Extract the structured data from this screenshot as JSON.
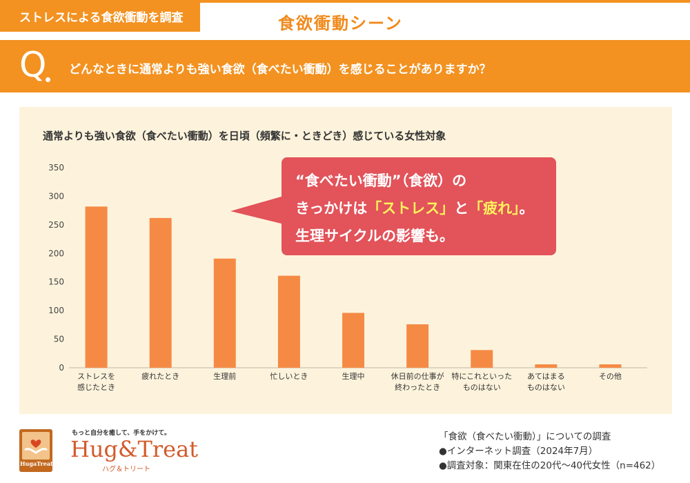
{
  "header": {
    "tag": "ストレスによる食欲衝動を調査",
    "section_title": "食欲衝動シーン"
  },
  "question": {
    "mark": "Q",
    "text": "どんなときに通常よりも強い食欲（食べたい衝動）を感じることがありますか？"
  },
  "callout": {
    "line1": "“食べたい衝動”（食欲）の",
    "line2_pre": "きっかけは",
    "hl1": "「ストレス」",
    "line2_mid": "と",
    "hl2": "「疲れ」",
    "line2_post": "。",
    "line3": "生理サイクルの影響も。"
  },
  "chart_data": {
    "type": "bar",
    "title": "通常よりも強い食欲（食べたい衝動）を日頃（頻繁に・ときどき）感じている女性対象",
    "categories": [
      [
        "ストレスを",
        "感じたとき"
      ],
      [
        "疲れたとき"
      ],
      [
        "生理前"
      ],
      [
        "忙しいとき"
      ],
      [
        "生理中"
      ],
      [
        "休日前の仕事が",
        "終わったとき"
      ],
      [
        "特にこれといった",
        "ものはない"
      ],
      [
        "あてはまる",
        "ものはない"
      ],
      [
        "その他"
      ]
    ],
    "values": [
      282,
      262,
      191,
      161,
      96,
      76,
      31,
      6,
      6
    ],
    "ylim": [
      0,
      350
    ],
    "yticks": [
      "0",
      "50",
      "100",
      "150",
      "200",
      "250",
      "300",
      "350"
    ],
    "bar_color": "#f58a45",
    "grid": false
  },
  "brand": {
    "tagline": "もっと自分を癒して、手をかけて。",
    "name": "Hug&Treat",
    "kana": "ハグ＆トリート",
    "logo_text": "HugaTreat"
  },
  "notes": [
    "「食欲（食べたい衝動）」についての調査",
    "●インターネット調査（2024年7月）",
    "●調査対象：関東在住の20代～40代女性（n=462）"
  ],
  "colors": {
    "accent": "#f39221",
    "panel": "#fdf3dc",
    "callout": "#e2535a",
    "highlight": "#fff35c"
  }
}
